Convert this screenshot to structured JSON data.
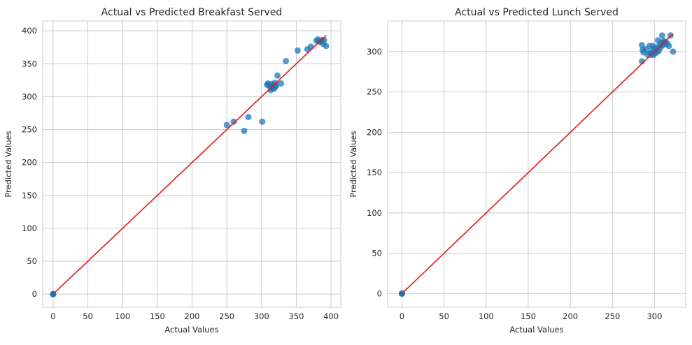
{
  "chart_data": [
    {
      "type": "scatter",
      "title": "Actual vs Predicted Breakfast Served",
      "xlabel": "Actual Values",
      "ylabel": "Predicted Values",
      "xlim": [
        -15,
        414
      ],
      "ylim": [
        -20,
        415
      ],
      "xticks": [
        0,
        50,
        100,
        150,
        200,
        250,
        300,
        350,
        400
      ],
      "yticks": [
        0,
        50,
        100,
        150,
        200,
        250,
        300,
        350,
        400
      ],
      "grid": true,
      "point_color": "#1f77b4",
      "line_color": "#e41a1c",
      "reference_line": {
        "x": [
          0,
          393
        ],
        "y": [
          0,
          393
        ]
      },
      "x": [
        0,
        0,
        0,
        0,
        250,
        260,
        275,
        281,
        301,
        308,
        309,
        311,
        313,
        314,
        315,
        316,
        317,
        318,
        319,
        320,
        321,
        323,
        328,
        335,
        352,
        366,
        371,
        379,
        381,
        383,
        385,
        387,
        389,
        390,
        393
      ],
      "y": [
        0,
        0,
        0,
        0,
        257,
        262,
        248,
        269,
        262,
        318,
        320,
        317,
        310,
        319,
        313,
        314,
        317,
        312,
        321,
        315,
        317,
        332,
        320,
        354,
        370,
        372,
        376,
        385,
        387,
        384,
        383,
        386,
        380,
        386,
        377
      ]
    },
    {
      "type": "scatter",
      "title": "Actual vs Predicted Lunch Served",
      "xlabel": "Actual Values",
      "ylabel": "Predicted Values",
      "xlim": [
        -17,
        337
      ],
      "ylim": [
        -17,
        338
      ],
      "xticks": [
        0,
        50,
        100,
        150,
        200,
        250,
        300
      ],
      "yticks": [
        0,
        50,
        100,
        150,
        200,
        250,
        300
      ],
      "grid": true,
      "point_color": "#1f77b4",
      "line_color": "#e41a1c",
      "reference_line": {
        "x": [
          0,
          322
        ],
        "y": [
          0,
          322
        ]
      },
      "x": [
        0,
        0,
        0,
        0,
        285,
        285,
        286,
        287,
        290,
        292,
        294,
        295,
        296,
        297,
        298,
        299,
        300,
        301,
        302,
        303,
        304,
        305,
        306,
        307,
        308,
        309,
        310,
        311,
        312,
        313,
        315,
        317,
        319,
        322
      ],
      "y": [
        0,
        0,
        0,
        0,
        288,
        308,
        302,
        299,
        303,
        296,
        307,
        298,
        296,
        300,
        307,
        296,
        303,
        298,
        305,
        300,
        314,
        301,
        308,
        305,
        311,
        320,
        308,
        313,
        310,
        312,
        310,
        307,
        320,
        300
      ]
    }
  ]
}
